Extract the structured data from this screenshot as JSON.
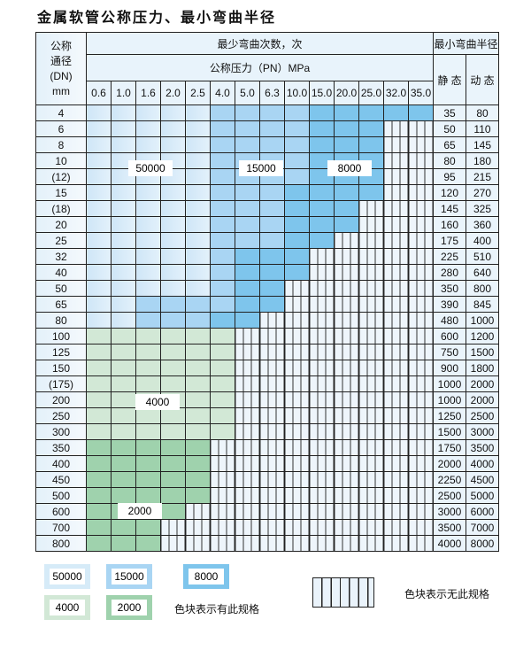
{
  "title": "金属软管公称压力、最小弯曲半径",
  "header": {
    "dn_label": [
      "公称",
      "通径",
      "(DN)",
      "mm"
    ],
    "cycles_label": "最少弯曲次数，次",
    "pressure_label": "公称压力（PN）MPa",
    "radius_label": "最小弯曲半径",
    "static_label": "静 态",
    "dynamic_label": "动 态",
    "pressures": [
      "0.6",
      "1.0",
      "1.6",
      "2.0",
      "2.5",
      "4.0",
      "5.0",
      "6.3",
      "10.0",
      "15.0",
      "20.0",
      "25.0",
      "32.0",
      "35.0"
    ]
  },
  "tier_codes": {
    "L": "50000",
    "M": "15000",
    "D": "8000",
    "G": "4000",
    "H": "2000",
    "-": "none"
  },
  "rows": [
    {
      "dn": "4",
      "static": "35",
      "dynamic": "80",
      "cells": "LLLLLMMMMDDDDD"
    },
    {
      "dn": "6",
      "static": "50",
      "dynamic": "110",
      "cells": "LLLLLMMMMDDD--"
    },
    {
      "dn": "8",
      "static": "65",
      "dynamic": "145",
      "cells": "LLLLLMMMMDDD--"
    },
    {
      "dn": "10",
      "static": "80",
      "dynamic": "180",
      "cells": "LLLLLMMMMDDD--"
    },
    {
      "dn": "(12)",
      "static": "95",
      "dynamic": "215",
      "cells": "LLLLLMMMMDDD--"
    },
    {
      "dn": "15",
      "static": "120",
      "dynamic": "270",
      "cells": "LLLLLMMMDDDD--"
    },
    {
      "dn": "(18)",
      "static": "145",
      "dynamic": "325",
      "cells": "LLLLLMMMDDD---"
    },
    {
      "dn": "20",
      "static": "160",
      "dynamic": "360",
      "cells": "LLLLLMMMDDD---"
    },
    {
      "dn": "25",
      "static": "175",
      "dynamic": "400",
      "cells": "LLLLLMMMDD----"
    },
    {
      "dn": "32",
      "static": "225",
      "dynamic": "510",
      "cells": "LLLLLMDDD-----"
    },
    {
      "dn": "40",
      "static": "280",
      "dynamic": "640",
      "cells": "LLLLLMDDD-----"
    },
    {
      "dn": "50",
      "static": "350",
      "dynamic": "800",
      "cells": "LLLLLMDD------"
    },
    {
      "dn": "65",
      "static": "390",
      "dynamic": "845",
      "cells": "LLMMMMDD------"
    },
    {
      "dn": "80",
      "static": "480",
      "dynamic": "1000",
      "cells": "LLMMMDD-------"
    },
    {
      "dn": "100",
      "static": "600",
      "dynamic": "1200",
      "cells": "GGGGGG--------"
    },
    {
      "dn": "125",
      "static": "750",
      "dynamic": "1500",
      "cells": "GGGGGG--------"
    },
    {
      "dn": "150",
      "static": "900",
      "dynamic": "1800",
      "cells": "GGGGGG--------"
    },
    {
      "dn": "(175)",
      "static": "1000",
      "dynamic": "2000",
      "cells": "GGGGGG--------"
    },
    {
      "dn": "200",
      "static": "1000",
      "dynamic": "2000",
      "cells": "GGGGGG--------"
    },
    {
      "dn": "250",
      "static": "1250",
      "dynamic": "2500",
      "cells": "GGGGGG--------"
    },
    {
      "dn": "300",
      "static": "1500",
      "dynamic": "3000",
      "cells": "GGGGGG--------"
    },
    {
      "dn": "350",
      "static": "1750",
      "dynamic": "3500",
      "cells": "HHHHH---------"
    },
    {
      "dn": "400",
      "static": "2000",
      "dynamic": "4000",
      "cells": "HHHHH---------"
    },
    {
      "dn": "450",
      "static": "2250",
      "dynamic": "4500",
      "cells": "HHHHH---------"
    },
    {
      "dn": "500",
      "static": "2500",
      "dynamic": "5000",
      "cells": "HHHHH---------"
    },
    {
      "dn": "600",
      "static": "3000",
      "dynamic": "6000",
      "cells": "HHHH----------"
    },
    {
      "dn": "700",
      "static": "3500",
      "dynamic": "7000",
      "cells": "HHH-----------"
    },
    {
      "dn": "800",
      "static": "4000",
      "dynamic": "8000",
      "cells": "HHH-----------"
    }
  ],
  "region_labels": {
    "l": "50000",
    "m": "15000",
    "d": "8000",
    "g": "4000",
    "h": "2000"
  },
  "legend": {
    "items": [
      "50000",
      "15000",
      "8000",
      "4000",
      "2000"
    ],
    "has_spec_text": "色块表示有此规格",
    "no_spec_text": "色块表示无此规格"
  },
  "colors": {
    "tier_50000": "#cfe6f7",
    "tier_15000": "#a9d5f3",
    "tier_8000": "#7ec5ec",
    "tier_4000": "#d2e8d6",
    "tier_2000": "#9fd2ad",
    "header_bg": "#e8f3fb"
  }
}
